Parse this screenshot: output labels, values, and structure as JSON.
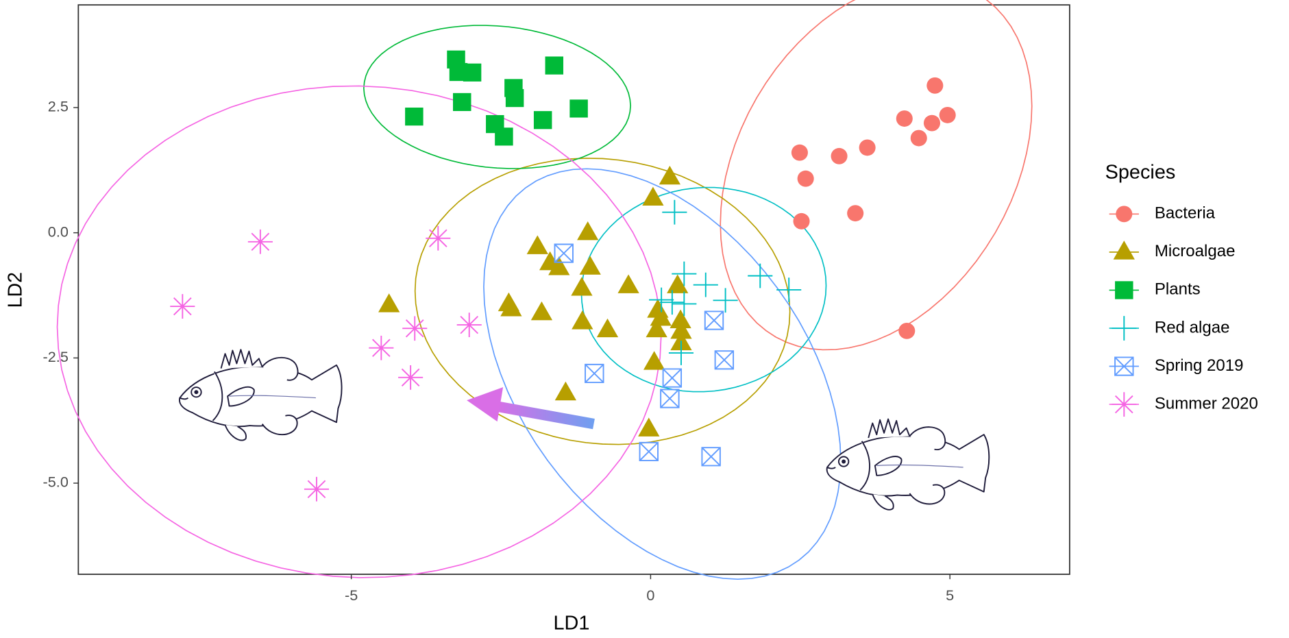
{
  "chart_data": {
    "type": "scatter",
    "x_label": "LD1",
    "y_label": "LD2",
    "legend_title": "Species",
    "xlim": [
      -9.56,
      7.0
    ],
    "ylim": [
      -6.82,
      4.55
    ],
    "xticks": [
      -5,
      0,
      5
    ],
    "yticks": [
      {
        "value": -5,
        "label": "-5.0"
      },
      -2.5,
      {
        "value": 0,
        "label": "0.0"
      },
      2.5
    ],
    "ellipses": true,
    "legend": "right",
    "series": [
      {
        "name": "Bacteria",
        "color": "#f8766d",
        "shape": "circle",
        "x": [
          2.49,
          2.59,
          2.52,
          3.15,
          3.62,
          3.42,
          4.24,
          4.48,
          4.7,
          4.75,
          4.96,
          4.28
        ],
        "values": [
          1.6,
          1.08,
          0.23,
          1.53,
          1.7,
          0.39,
          2.28,
          1.89,
          2.19,
          2.94,
          2.35,
          -1.96
        ]
      },
      {
        "name": "Microalgae",
        "color": "#b79f00",
        "shape": "triangle",
        "x": [
          0.32,
          0.04,
          -1.89,
          -1.05,
          -1.68,
          -1.53,
          -1.01,
          -1.15,
          -0.37,
          0.45,
          -2.37,
          -2.33,
          -1.82,
          -1.14,
          -0.72,
          0.12,
          0.17,
          0.1,
          0.5,
          0.51,
          0.51,
          0.06,
          -1.42,
          -0.03,
          -4.37
        ],
        "values": [
          1.11,
          0.69,
          -0.28,
          0.0,
          -0.6,
          -0.7,
          -0.69,
          -1.11,
          -1.06,
          -1.06,
          -1.42,
          -1.52,
          -1.6,
          -1.78,
          -1.94,
          -1.55,
          -1.71,
          -1.94,
          -1.76,
          -1.97,
          -2.2,
          -2.59,
          -3.2,
          -3.92,
          -1.44
        ]
      },
      {
        "name": "Plants",
        "color": "#00ba38",
        "shape": "square",
        "x": [
          -3.25,
          -3.21,
          -2.98,
          -3.15,
          -3.95,
          -2.29,
          -2.27,
          -1.61,
          -1.8,
          -1.2,
          -2.6,
          -2.45
        ],
        "values": [
          3.46,
          3.21,
          3.2,
          2.61,
          2.32,
          2.89,
          2.69,
          3.34,
          2.25,
          2.48,
          2.17,
          1.92
        ]
      },
      {
        "name": "Red algae",
        "color": "#00bfc4",
        "shape": "plus",
        "x": [
          0.4,
          0.56,
          0.18,
          0.56,
          0.92,
          1.25,
          1.83,
          2.31,
          0.51,
          0.36
        ],
        "values": [
          0.41,
          -0.82,
          -1.34,
          -1.42,
          -1.04,
          -1.35,
          -0.86,
          -1.14,
          -2.4,
          -1.39
        ]
      },
      {
        "name": "Spring 2019",
        "color": "#619cff",
        "shape": "square-x",
        "x": [
          -1.45,
          -0.94,
          0.36,
          0.32,
          1.06,
          1.23,
          -0.03,
          1.01
        ],
        "values": [
          -0.41,
          -2.81,
          -2.9,
          -3.31,
          -1.75,
          -2.54,
          -4.37,
          -4.47
        ]
      },
      {
        "name": "Summer 2020",
        "color": "#f564e3",
        "shape": "asterisk",
        "x": [
          -6.52,
          -3.55,
          -7.82,
          -4.5,
          -3.94,
          -3.03,
          -4.01,
          -5.58
        ],
        "values": [
          -0.18,
          -0.11,
          -1.47,
          -2.3,
          -1.91,
          -1.84,
          -2.89,
          -5.12
        ]
      }
    ]
  }
}
